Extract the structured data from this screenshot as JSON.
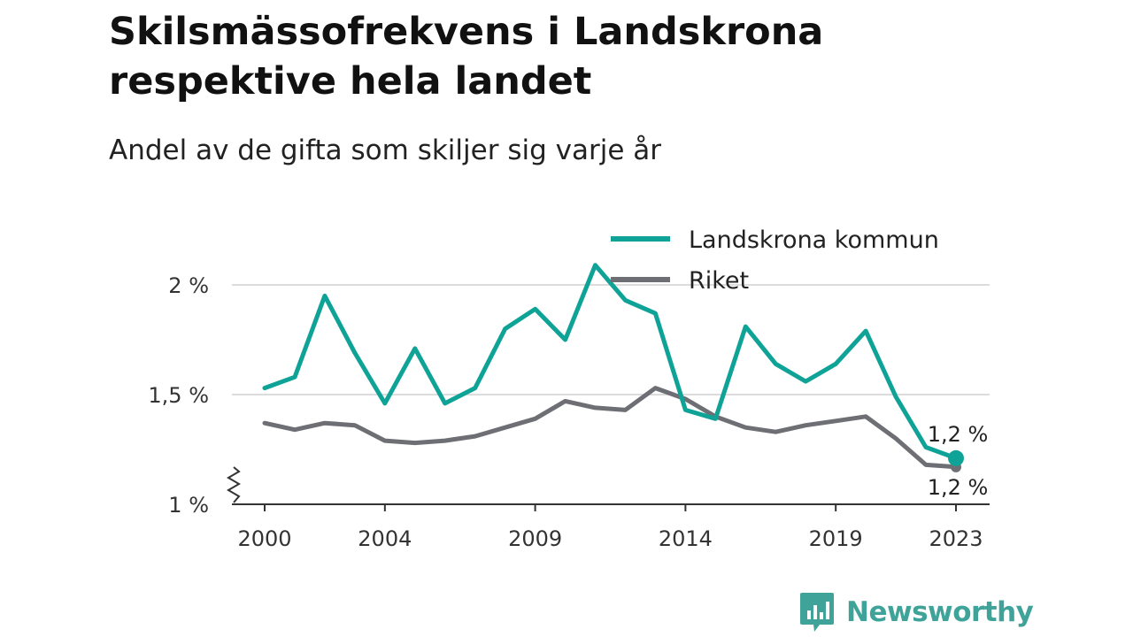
{
  "colors": {
    "landskrona": "#0fa397",
    "riket": "#6e6e75",
    "grid": "#dcdcdc",
    "axis": "#333333"
  },
  "brand": {
    "name": "Newsworthy",
    "icon": "newsworthy-logo-icon"
  },
  "chart_data": {
    "type": "line",
    "title": "Skilsmässofrekvens i Landskrona respektive hela landet",
    "subtitle": "Andel av de gifta som skiljer sig varje år",
    "xlabel": "",
    "ylabel": "",
    "xlim": [
      2000,
      2023
    ],
    "ylim": [
      1.0,
      2.0
    ],
    "y_axis_break": true,
    "grid": true,
    "legend_position": "top-right",
    "x_ticks": [
      2000,
      2004,
      2009,
      2014,
      2019,
      2023
    ],
    "x_tick_labels": [
      "2000",
      "2004",
      "2009",
      "2014",
      "2019",
      "2023"
    ],
    "y_ticks": [
      1.0,
      1.5,
      2.0
    ],
    "y_tick_labels": [
      "1 %",
      "1,5 %",
      "2 %"
    ],
    "x": [
      2000,
      2001,
      2002,
      2003,
      2004,
      2005,
      2006,
      2007,
      2008,
      2009,
      2010,
      2011,
      2012,
      2013,
      2014,
      2015,
      2016,
      2017,
      2018,
      2019,
      2020,
      2021,
      2022,
      2023
    ],
    "series": [
      {
        "name": "Landskrona kommun",
        "color": "#0fa397",
        "values": [
          1.53,
          1.58,
          1.95,
          1.69,
          1.46,
          1.71,
          1.46,
          1.53,
          1.8,
          1.89,
          1.75,
          2.09,
          1.93,
          1.87,
          1.43,
          1.39,
          1.81,
          1.64,
          1.56,
          1.64,
          1.79,
          1.49,
          1.26,
          1.21
        ],
        "end_label": "1,2 %"
      },
      {
        "name": "Riket",
        "color": "#6e6e75",
        "values": [
          1.37,
          1.34,
          1.37,
          1.36,
          1.29,
          1.28,
          1.29,
          1.31,
          1.35,
          1.39,
          1.47,
          1.44,
          1.43,
          1.53,
          1.48,
          1.4,
          1.35,
          1.33,
          1.36,
          1.38,
          1.4,
          1.3,
          1.18,
          1.17
        ],
        "end_label": "1,2 %"
      }
    ]
  }
}
